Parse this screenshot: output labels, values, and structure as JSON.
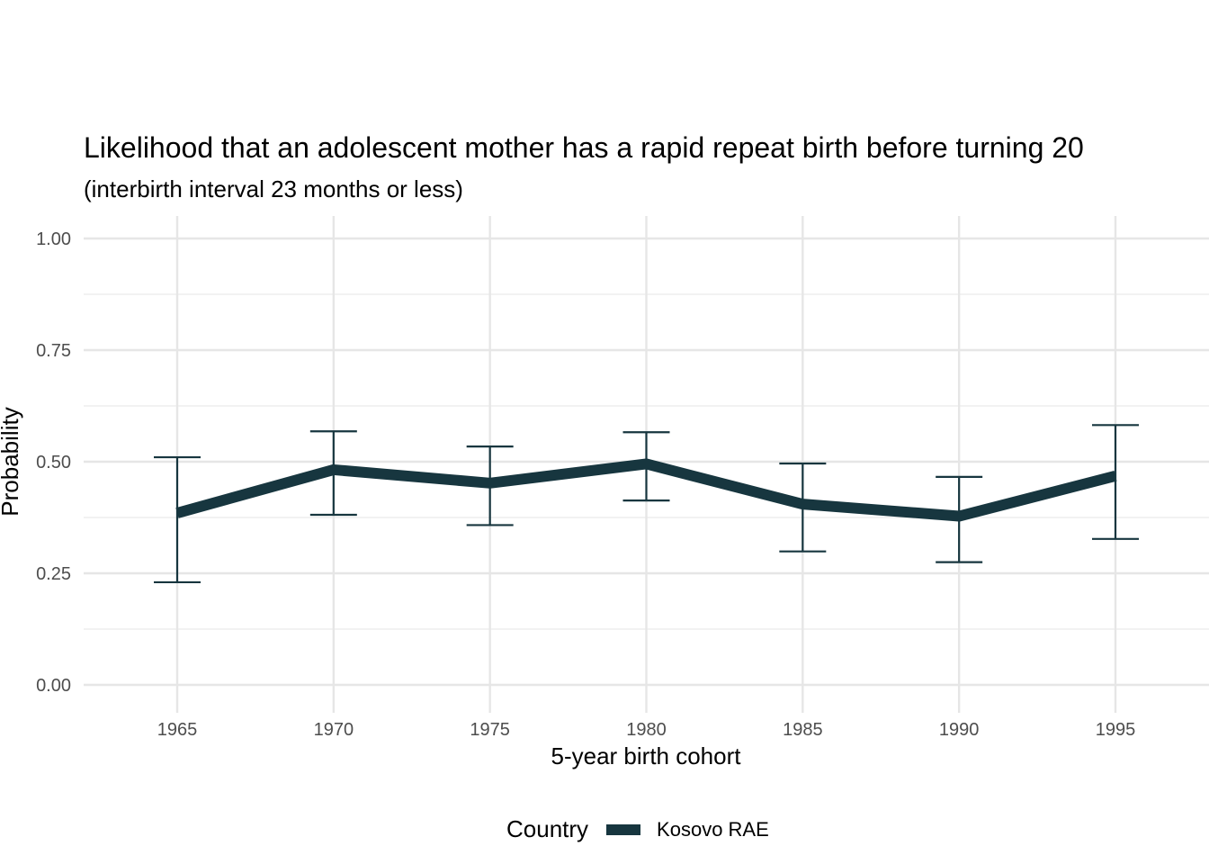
{
  "chart_data": {
    "type": "line",
    "title": "Likelihood that an adolescent mother has a rapid repeat birth before turning 20",
    "subtitle": "(interbirth interval 23 months or less)",
    "xlabel": "5-year birth cohort",
    "ylabel": "Probability",
    "x": [
      1965,
      1970,
      1975,
      1980,
      1985,
      1990,
      1995
    ],
    "xticks": [
      "1965",
      "1970",
      "1975",
      "1980",
      "1985",
      "1990",
      "1995"
    ],
    "yticks": [
      "0.00",
      "0.25",
      "0.50",
      "0.75",
      "1.00"
    ],
    "ylim": [
      0,
      1
    ],
    "xlim": [
      1962,
      1998
    ],
    "grid": true,
    "series": [
      {
        "name": "Kosovo RAE",
        "color": "#17363f",
        "values": [
          0.385,
          0.482,
          0.452,
          0.495,
          0.405,
          0.378,
          0.468
        ],
        "lower": [
          0.23,
          0.381,
          0.358,
          0.413,
          0.299,
          0.275,
          0.327
        ],
        "upper": [
          0.51,
          0.568,
          0.534,
          0.566,
          0.496,
          0.466,
          0.582
        ]
      }
    ],
    "legend": {
      "title": "Country",
      "placement": "bottom"
    }
  }
}
